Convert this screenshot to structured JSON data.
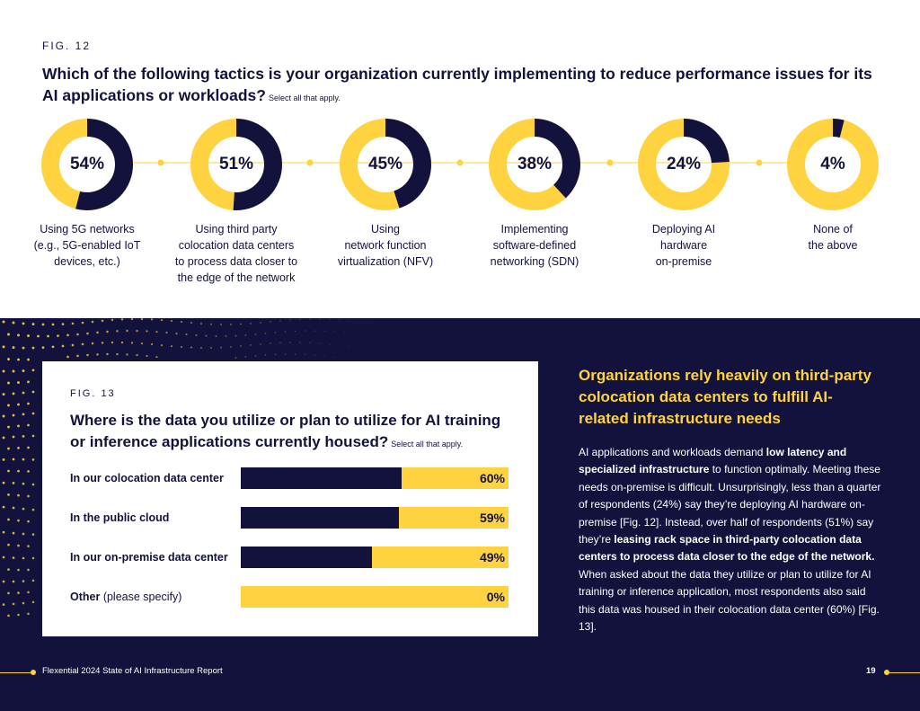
{
  "fig12": {
    "label": "FIG. 12",
    "question": "Which of the following tactics is your organization currently implementing to reduce performance issues for its AI applications or workloads?",
    "note": "Select all that apply.",
    "items": [
      {
        "pct_text": "54%",
        "value": 54,
        "label_lines": [
          "Using 5G networks",
          "(e.g., 5G-enabled IoT",
          "devices, etc.)"
        ]
      },
      {
        "pct_text": "51%",
        "value": 51,
        "label_lines": [
          "Using third party",
          "colocation data centers",
          "to process data closer to",
          "the edge of the network"
        ]
      },
      {
        "pct_text": "45%",
        "value": 45,
        "label_lines": [
          "Using",
          "network function",
          "virtualization (NFV)"
        ]
      },
      {
        "pct_text": "38%",
        "value": 38,
        "label_lines": [
          "Implementing",
          "software-defined",
          "networking (SDN)"
        ]
      },
      {
        "pct_text": "24%",
        "value": 24,
        "label_lines": [
          "Deploying AI",
          "hardware",
          "on-premise"
        ]
      },
      {
        "pct_text": "4%",
        "value": 4,
        "label_lines": [
          "None of",
          "the above"
        ]
      }
    ]
  },
  "fig13": {
    "label": "FIG. 13",
    "question": "Where is the data you utilize or plan to utilize for AI training or inference applications currently housed?",
    "note": "Select all that apply.",
    "bars": [
      {
        "label": "In our colocation data center",
        "label_rest": "",
        "pct_text": "60%",
        "value": 60
      },
      {
        "label": "In the public cloud",
        "label_rest": "",
        "pct_text": "59%",
        "value": 59
      },
      {
        "label": "In our on-premise data center",
        "label_rest": "",
        "pct_text": "49%",
        "value": 49
      },
      {
        "label": "Other",
        "label_rest": " (please specify)",
        "pct_text": "0%",
        "value": 0
      }
    ]
  },
  "sidebar": {
    "title": "Organizations rely heavily on third-party colocation data centers to fulfill AI-related infrastructure needs",
    "body": [
      {
        "text": "AI applications and workloads demand ",
        "bold": false
      },
      {
        "text": "low latency and specialized infrastructure",
        "bold": true
      },
      {
        "text": " to function optimally. Meeting these needs on-premise is difficult. Unsurprisingly, less than a quarter of respondents (24%) say they’re deploying AI hardware on-premise [Fig. 12]. Instead, over half of respondents (51%) say they’re ",
        "bold": false
      },
      {
        "text": "leasing rack space in third-party colocation data centers to process data closer to the edge of the network.",
        "bold": true
      },
      {
        "text": " When asked about the data they utilize or plan to utilize for AI training or inference application, most respondents also said this data was housed in their colocation data center (60%) [Fig. 13].",
        "bold": false
      }
    ]
  },
  "footer": {
    "text": "Flexential 2024 State of AI Infrastructure Report",
    "page": "19"
  },
  "colors": {
    "navy": "#12123d",
    "yellow": "#ffd23f"
  }
}
